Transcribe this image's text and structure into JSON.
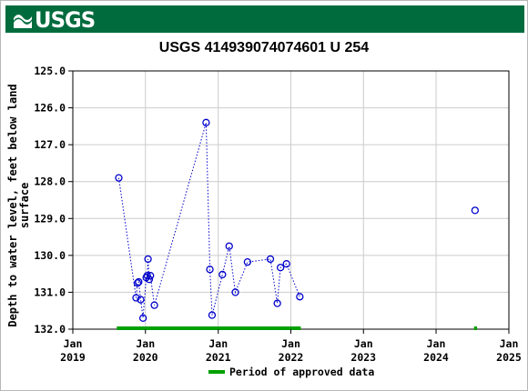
{
  "header": {
    "logo_text": "USGS",
    "logo_icon": "usgs-wave-icon",
    "banner_color": "#006b3d"
  },
  "chart_data": {
    "type": "scatter",
    "title": "USGS 414939074074601 U 254",
    "ylabel_lines": [
      "Depth to water level, feet below land",
      "surface"
    ],
    "y_inverted": true,
    "ylim": [
      125.0,
      132.0
    ],
    "yticks": [
      "125.0",
      "126.0",
      "127.0",
      "128.0",
      "129.0",
      "130.0",
      "131.0",
      "132.0"
    ],
    "xlim": [
      "2019-01-01",
      "2025-01-01"
    ],
    "xticks": [
      {
        "top": "Jan",
        "bottom": "2019",
        "date": "2019-01-01"
      },
      {
        "top": "Jan",
        "bottom": "2020",
        "date": "2020-01-01"
      },
      {
        "top": "Jan",
        "bottom": "2021",
        "date": "2021-01-01"
      },
      {
        "top": "Jan",
        "bottom": "2022",
        "date": "2022-01-01"
      },
      {
        "top": "Jan",
        "bottom": "2023",
        "date": "2023-01-01"
      },
      {
        "top": "Jan",
        "bottom": "2024",
        "date": "2024-01-01"
      },
      {
        "top": "Jan",
        "bottom": "2025",
        "date": "2025-01-01"
      }
    ],
    "grid": true,
    "series": [
      {
        "color": "#0000cc",
        "marker": "circle-open",
        "line": "dotted",
        "points": [
          {
            "x": "2019-08-20",
            "y": 127.9
          },
          {
            "x": "2019-11-15",
            "y": 131.15
          },
          {
            "x": "2019-11-22",
            "y": 130.75
          },
          {
            "x": "2019-11-28",
            "y": 130.72
          },
          {
            "x": "2019-12-08",
            "y": 131.2
          },
          {
            "x": "2019-12-20",
            "y": 131.7
          },
          {
            "x": "2020-01-05",
            "y": 130.6
          },
          {
            "x": "2020-01-10",
            "y": 130.55
          },
          {
            "x": "2020-01-14",
            "y": 130.1
          },
          {
            "x": "2020-01-20",
            "y": 130.65
          },
          {
            "x": "2020-01-26",
            "y": 130.55
          },
          {
            "x": "2020-02-15",
            "y": 131.35
          },
          {
            "x": "2020-11-01",
            "y": 126.4
          },
          {
            "x": "2020-11-20",
            "y": 130.38
          },
          {
            "x": "2020-12-01",
            "y": 131.62
          },
          {
            "x": "2021-01-22",
            "y": 130.52
          },
          {
            "x": "2021-02-25",
            "y": 129.75
          },
          {
            "x": "2021-03-28",
            "y": 131.0
          },
          {
            "x": "2021-05-28",
            "y": 130.18
          },
          {
            "x": "2021-09-20",
            "y": 130.1
          },
          {
            "x": "2021-10-25",
            "y": 131.3
          },
          {
            "x": "2021-11-10",
            "y": 130.33
          },
          {
            "x": "2021-12-10",
            "y": 130.23
          },
          {
            "x": "2022-02-15",
            "y": 131.12
          }
        ]
      },
      {
        "color": "#0000cc",
        "marker": "circle-open",
        "line": "none",
        "points": [
          {
            "x": "2024-07-15",
            "y": 128.78
          }
        ]
      }
    ],
    "approved_periods": [
      {
        "start": "2019-08-10",
        "end": "2022-02-20"
      },
      {
        "start": "2024-07-10",
        "end": "2024-07-25"
      }
    ],
    "approved_color": "#00a000",
    "legend": {
      "label": "Period of approved data",
      "position": "bottom"
    }
  }
}
